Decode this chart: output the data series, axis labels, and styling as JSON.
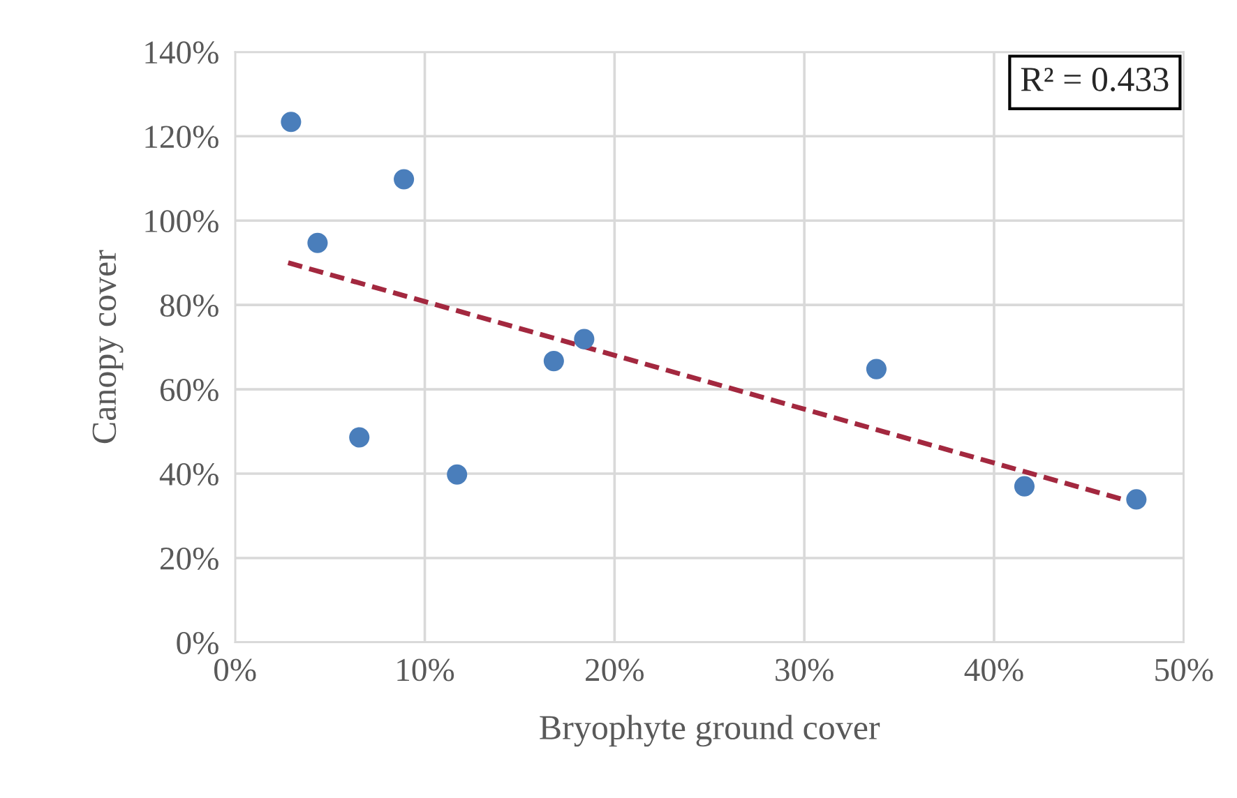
{
  "chart_data": {
    "type": "scatter",
    "xlabel": "Bryophyte ground cover",
    "ylabel": "Canopy cover",
    "series": [
      {
        "color": "#4a7ebb",
        "marker": "circle",
        "x": [
          2.95,
          4.35,
          8.9,
          6.55,
          11.7,
          16.8,
          18.4,
          33.8,
          41.6,
          47.5
        ],
        "values": [
          123.4,
          94.7,
          109.8,
          48.6,
          39.8,
          66.7,
          71.9,
          64.8,
          37.0,
          33.9
        ]
      },
      {
        "type": "line",
        "color": "#a3283f",
        "line_style": "dashed",
        "marker": "none",
        "x": [
          2.8,
          47.4
        ],
        "values": [
          90.0,
          33.1
        ]
      }
    ],
    "xlim": [
      0,
      50
    ],
    "ylim": [
      0,
      140
    ],
    "xticks": [
      {
        "value": 0,
        "label": "0%"
      },
      {
        "value": 10,
        "label": "10%"
      },
      {
        "value": 20,
        "label": "20%"
      },
      {
        "value": 30,
        "label": "30%"
      },
      {
        "value": 40,
        "label": "40%"
      },
      {
        "value": 50,
        "label": "50%"
      }
    ],
    "yticks": [
      {
        "value": 0,
        "label": "0%"
      },
      {
        "value": 20,
        "label": "20%"
      },
      {
        "value": 40,
        "label": "40%"
      },
      {
        "value": 60,
        "label": "60%"
      },
      {
        "value": 80,
        "label": "80%"
      },
      {
        "value": 100,
        "label": "100%"
      },
      {
        "value": 120,
        "label": "120%"
      },
      {
        "value": 140,
        "label": "140%"
      }
    ],
    "grid": true,
    "annotations": [
      "R² = 0.433"
    ]
  }
}
